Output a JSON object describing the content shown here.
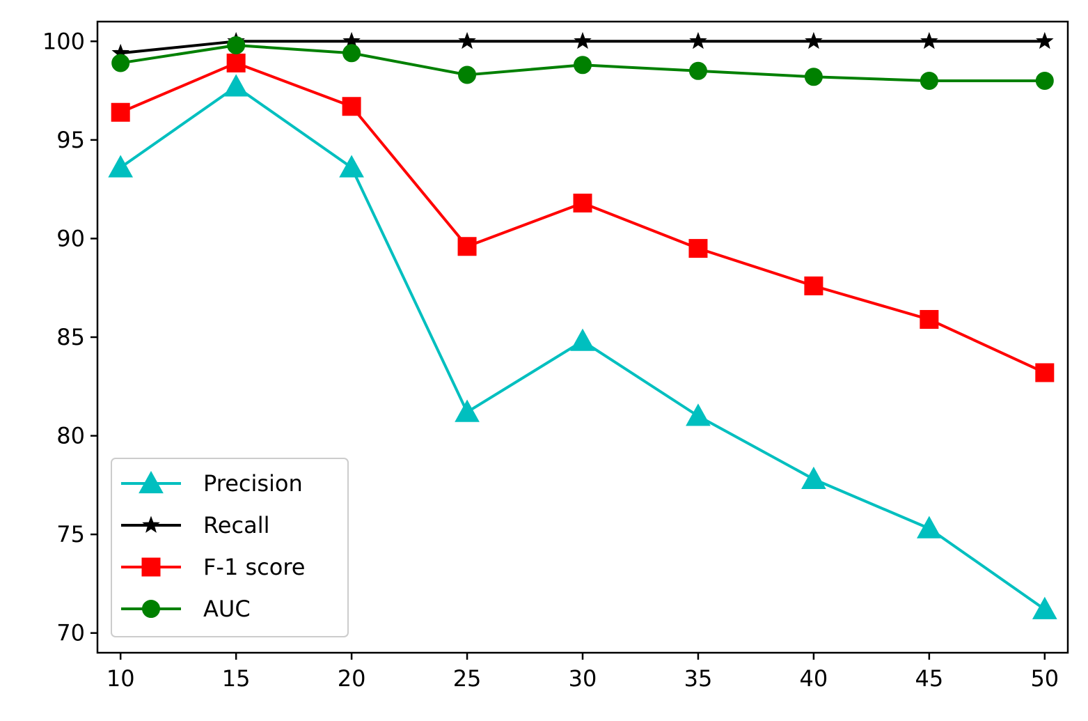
{
  "chart_data": {
    "type": "line",
    "title": "",
    "xlabel": "",
    "ylabel": "",
    "x": [
      10,
      15,
      20,
      25,
      30,
      35,
      40,
      45,
      50
    ],
    "xlim": [
      9,
      51
    ],
    "ylim": [
      69,
      101
    ],
    "xticks": [
      "10",
      "15",
      "20",
      "25",
      "30",
      "35",
      "40",
      "45",
      "50"
    ],
    "yticks": [
      "70",
      "75",
      "80",
      "85",
      "90",
      "95",
      "100"
    ],
    "grid": false,
    "legend_position": "lower-left",
    "series": [
      {
        "name": "Precision",
        "color": "#00bfbf",
        "marker": "triangle",
        "values": [
          93.6,
          97.7,
          93.6,
          81.2,
          84.8,
          81.0,
          77.8,
          75.3,
          71.2
        ]
      },
      {
        "name": "Recall",
        "color": "#000000",
        "marker": "star",
        "values": [
          99.4,
          100.0,
          100.0,
          100.0,
          100.0,
          100.0,
          100.0,
          100.0,
          100.0
        ]
      },
      {
        "name": "F-1 score",
        "color": "#ff0000",
        "marker": "square",
        "values": [
          96.4,
          98.9,
          96.7,
          89.6,
          91.8,
          89.5,
          87.6,
          85.9,
          83.2
        ]
      },
      {
        "name": "AUC",
        "color": "#008000",
        "marker": "circle",
        "values": [
          98.9,
          99.8,
          99.4,
          98.3,
          98.8,
          98.5,
          98.2,
          98.0,
          98.0
        ]
      }
    ]
  }
}
